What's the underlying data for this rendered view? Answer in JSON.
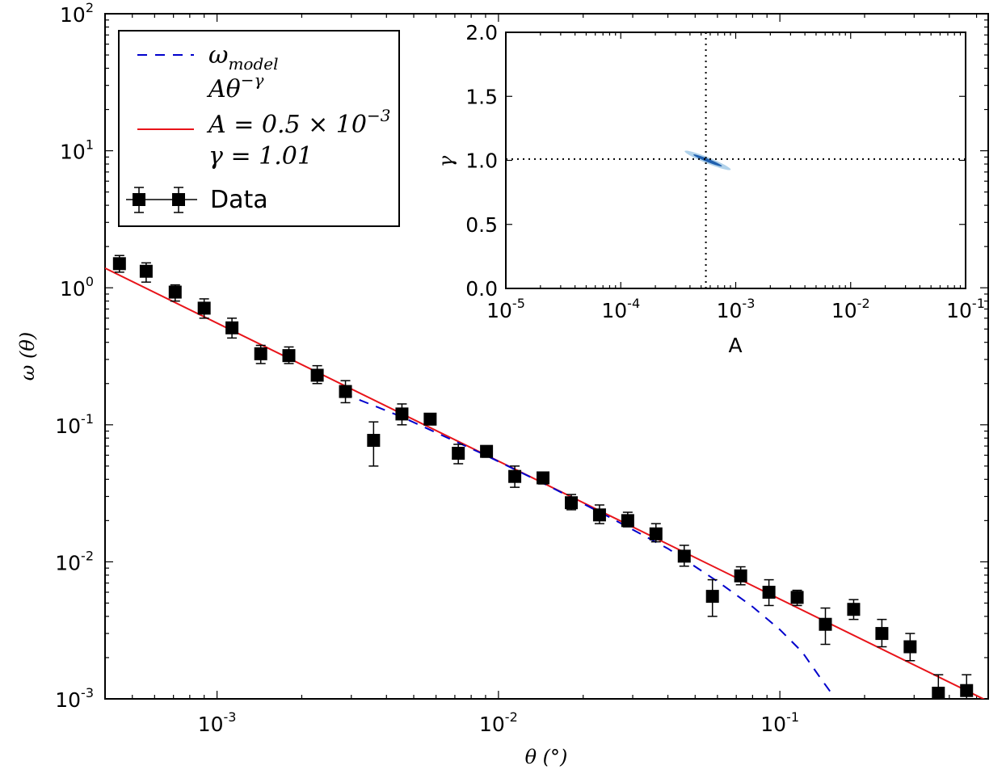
{
  "chart_data": [
    {
      "type": "scatter",
      "title": "",
      "xlabel": "θ (°)",
      "ylabel": "ω (θ)",
      "xscale": "log",
      "yscale": "log",
      "xlim": [
        0.0004,
        0.55
      ],
      "ylim": [
        0.001,
        100
      ],
      "xticks": [
        {
          "mant": "10",
          "exp": "-3"
        },
        {
          "mant": "10",
          "exp": "-2"
        },
        {
          "mant": "10",
          "exp": "-1"
        }
      ],
      "yticks": [
        {
          "mant": "10",
          "exp": "-3"
        },
        {
          "mant": "10",
          "exp": "-2"
        },
        {
          "mant": "10",
          "exp": "-1"
        },
        {
          "mant": "10",
          "exp": "0"
        },
        {
          "mant": "10",
          "exp": "1"
        },
        {
          "mant": "10",
          "exp": "2"
        }
      ],
      "legend": {
        "position": "top-left",
        "entries": [
          {
            "name": "ω_model",
            "text_main": "ω",
            "text_sub": "model",
            "style": "dashed",
            "color": "#0000cc"
          },
          {
            "name": "fit-desc",
            "text_main": "Aθ",
            "text_sup": "−γ"
          },
          {
            "name": "fit-A",
            "text_main": "A = 0.5 × 10",
            "text_sup": "−3",
            "style": "solid",
            "color": "#e8141a"
          },
          {
            "name": "fit-gamma",
            "text_main": "γ = 1.01"
          },
          {
            "name": "data",
            "text_main": "Data",
            "style": "marker",
            "color": "#000000"
          }
        ]
      },
      "series": [
        {
          "name": "Data",
          "style": "square-marker-errorbar",
          "color": "#000000",
          "points": [
            {
              "x": 0.00045,
              "y": 1.5,
              "ylo": 1.3,
              "yhi": 1.72
            },
            {
              "x": 0.00056,
              "y": 1.32,
              "ylo": 1.1,
              "yhi": 1.52
            },
            {
              "x": 0.00071,
              "y": 0.93,
              "ylo": 0.8,
              "yhi": 1.05
            },
            {
              "x": 0.0009,
              "y": 0.71,
              "ylo": 0.6,
              "yhi": 0.83
            },
            {
              "x": 0.00113,
              "y": 0.51,
              "ylo": 0.43,
              "yhi": 0.6
            },
            {
              "x": 0.00143,
              "y": 0.33,
              "ylo": 0.28,
              "yhi": 0.38
            },
            {
              "x": 0.0018,
              "y": 0.32,
              "ylo": 0.28,
              "yhi": 0.37
            },
            {
              "x": 0.00227,
              "y": 0.23,
              "ylo": 0.2,
              "yhi": 0.27
            },
            {
              "x": 0.00286,
              "y": 0.175,
              "ylo": 0.145,
              "yhi": 0.21
            },
            {
              "x": 0.0036,
              "y": 0.077,
              "ylo": 0.05,
              "yhi": 0.105
            },
            {
              "x": 0.00454,
              "y": 0.12,
              "ylo": 0.1,
              "yhi": 0.142
            },
            {
              "x": 0.00572,
              "y": 0.11,
              "ylo": 0.1,
              "yhi": 0.12
            },
            {
              "x": 0.0072,
              "y": 0.062,
              "ylo": 0.052,
              "yhi": 0.072
            },
            {
              "x": 0.00907,
              "y": 0.064,
              "ylo": 0.058,
              "yhi": 0.07
            },
            {
              "x": 0.01143,
              "y": 0.042,
              "ylo": 0.035,
              "yhi": 0.05
            },
            {
              "x": 0.0144,
              "y": 0.041,
              "ylo": 0.037,
              "yhi": 0.045
            },
            {
              "x": 0.01815,
              "y": 0.027,
              "ylo": 0.024,
              "yhi": 0.031
            },
            {
              "x": 0.02286,
              "y": 0.022,
              "ylo": 0.019,
              "yhi": 0.026
            },
            {
              "x": 0.0288,
              "y": 0.02,
              "ylo": 0.018,
              "yhi": 0.023
            },
            {
              "x": 0.03628,
              "y": 0.016,
              "ylo": 0.014,
              "yhi": 0.019
            },
            {
              "x": 0.04572,
              "y": 0.011,
              "ylo": 0.0093,
              "yhi": 0.0132
            },
            {
              "x": 0.0576,
              "y": 0.0056,
              "ylo": 0.004,
              "yhi": 0.0074
            },
            {
              "x": 0.07257,
              "y": 0.0079,
              "ylo": 0.0068,
              "yhi": 0.0092
            },
            {
              "x": 0.09144,
              "y": 0.006,
              "ylo": 0.0048,
              "yhi": 0.0074
            },
            {
              "x": 0.1152,
              "y": 0.0055,
              "ylo": 0.0048,
              "yhi": 0.0062
            },
            {
              "x": 0.14514,
              "y": 0.0035,
              "ylo": 0.0025,
              "yhi": 0.0046
            },
            {
              "x": 0.18288,
              "y": 0.0045,
              "ylo": 0.0038,
              "yhi": 0.0053
            },
            {
              "x": 0.2304,
              "y": 0.003,
              "ylo": 0.0024,
              "yhi": 0.0038
            },
            {
              "x": 0.29029,
              "y": 0.0024,
              "ylo": 0.0019,
              "yhi": 0.003
            },
            {
              "x": 0.36576,
              "y": 0.0011,
              "ylo": 0.0008,
              "yhi": 0.0015
            },
            {
              "x": 0.4608,
              "y": 0.00115,
              "ylo": 0.00095,
              "yhi": 0.0015
            }
          ]
        },
        {
          "name": "Aθ^-γ fit",
          "style": "solid",
          "color": "#e8141a",
          "x": [
            0.0004,
            0.55
          ],
          "y": [
            1.39,
            0.00096
          ]
        },
        {
          "name": "ω_model",
          "style": "dashed",
          "color": "#0000cc",
          "x": [
            0.0028,
            0.0045,
            0.009,
            0.015,
            0.025,
            0.04,
            0.06,
            0.08,
            0.1,
            0.12,
            0.14,
            0.155
          ],
          "y": [
            0.17,
            0.115,
            0.06,
            0.036,
            0.021,
            0.0125,
            0.0072,
            0.0047,
            0.0032,
            0.0022,
            0.0014,
            0.00105
          ]
        }
      ]
    },
    {
      "type": "contour",
      "title": "",
      "xlabel": "A",
      "ylabel": "γ",
      "xscale": "log",
      "xlim": [
        1e-05,
        0.1
      ],
      "ylim": [
        0.0,
        2.0
      ],
      "xticks": [
        {
          "mant": "10",
          "exp": "-5"
        },
        {
          "mant": "10",
          "exp": "-4"
        },
        {
          "mant": "10",
          "exp": "-3"
        },
        {
          "mant": "10",
          "exp": "-2"
        },
        {
          "mant": "10",
          "exp": "-1"
        }
      ],
      "yticks": [
        "0.0",
        "0.5",
        "1.0",
        "1.5",
        "2.0"
      ],
      "best_fit": {
        "A": 0.00055,
        "gamma": 1.01
      },
      "contours": [
        {
          "level": "outer",
          "color": "#a8cde8",
          "center_A": 0.00057,
          "center_gamma": 1.0,
          "A_range": [
            0.00034,
            0.00092
          ],
          "gamma_range": [
            0.92,
            1.09
          ]
        },
        {
          "level": "inner",
          "color": "#1f5fae",
          "center_A": 0.00057,
          "center_gamma": 1.0,
          "A_range": [
            0.00042,
            0.00078
          ],
          "gamma_range": [
            0.96,
            1.05
          ]
        }
      ]
    }
  ]
}
